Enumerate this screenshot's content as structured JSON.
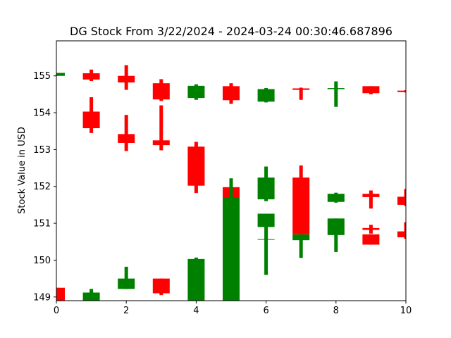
{
  "chart_data": {
    "type": "candlestick",
    "title": "DG Stock From 3/22/2024 - 2024-03-24 00:30:46.687896",
    "xlabel": "",
    "ylabel": "Stock Value in USD",
    "xlim": [
      0,
      10
    ],
    "ylim": [
      148.9,
      155.95
    ],
    "x_ticks": [
      0,
      2,
      4,
      6,
      8,
      10
    ],
    "y_ticks": [
      149,
      150,
      151,
      152,
      153,
      154,
      155
    ],
    "grid": false,
    "colors": {
      "up": "#008000",
      "down": "#ff0000",
      "frame": "#000000"
    },
    "candles": [
      {
        "x": 0,
        "open": 155.0,
        "close": 155.08,
        "high": 155.08,
        "low": 155.0
      },
      {
        "x": 0,
        "open": 149.25,
        "close": 148.9,
        "high": 149.25,
        "low": 148.9
      },
      {
        "x": 1,
        "open": 155.07,
        "close": 154.9,
        "high": 155.17,
        "low": 154.86
      },
      {
        "x": 1,
        "open": 154.03,
        "close": 153.58,
        "high": 154.42,
        "low": 153.45
      },
      {
        "x": 1,
        "open": 148.9,
        "close": 149.12,
        "high": 149.22,
        "low": 148.9
      },
      {
        "x": 2,
        "open": 155.0,
        "close": 154.82,
        "high": 155.29,
        "low": 154.62
      },
      {
        "x": 2,
        "open": 153.42,
        "close": 153.18,
        "high": 153.94,
        "low": 152.96
      },
      {
        "x": 2,
        "open": 149.22,
        "close": 149.5,
        "high": 149.82,
        "low": 149.22
      },
      {
        "x": 3,
        "open": 154.8,
        "close": 154.36,
        "high": 154.91,
        "low": 154.32
      },
      {
        "x": 3,
        "open": 153.25,
        "close": 153.12,
        "high": 154.2,
        "low": 152.98
      },
      {
        "x": 3,
        "open": 149.5,
        "close": 149.1,
        "high": 149.5,
        "low": 149.05
      },
      {
        "x": 4,
        "open": 154.4,
        "close": 154.73,
        "high": 154.77,
        "low": 154.35
      },
      {
        "x": 4,
        "open": 153.08,
        "close": 152.02,
        "high": 153.21,
        "low": 151.82
      },
      {
        "x": 4,
        "open": 148.9,
        "close": 150.03,
        "high": 150.07,
        "low": 148.9
      },
      {
        "x": 5,
        "open": 154.72,
        "close": 154.34,
        "high": 154.8,
        "low": 154.24
      },
      {
        "x": 5,
        "open": 151.98,
        "close": 151.63,
        "high": 151.98,
        "low": 151.35
      },
      {
        "x": 5,
        "open": 148.9,
        "close": 151.7,
        "high": 152.22,
        "low": 148.9
      },
      {
        "x": 6,
        "open": 154.3,
        "close": 154.64,
        "high": 154.67,
        "low": 154.28
      },
      {
        "x": 6,
        "open": 151.65,
        "close": 152.24,
        "high": 152.54,
        "low": 151.6
      },
      {
        "x": 6,
        "open": 150.9,
        "close": 151.26,
        "high": 151.26,
        "low": 149.6
      },
      {
        "x": 6,
        "open": 150.56,
        "close": 150.57,
        "high": 150.57,
        "low": 150.56
      },
      {
        "x": 7,
        "open": 154.66,
        "close": 154.62,
        "high": 154.68,
        "low": 154.35
      },
      {
        "x": 7,
        "open": 152.24,
        "close": 150.7,
        "high": 152.57,
        "low": 150.7
      },
      {
        "x": 7,
        "open": 150.54,
        "close": 150.7,
        "high": 150.7,
        "low": 150.06
      },
      {
        "x": 8,
        "open": 154.64,
        "close": 154.67,
        "high": 154.85,
        "low": 154.16
      },
      {
        "x": 8,
        "open": 151.58,
        "close": 151.8,
        "high": 151.83,
        "low": 151.56
      },
      {
        "x": 8,
        "open": 150.68,
        "close": 151.13,
        "high": 151.13,
        "low": 150.22
      },
      {
        "x": 9,
        "open": 154.72,
        "close": 154.53,
        "high": 154.72,
        "low": 154.5
      },
      {
        "x": 9,
        "open": 151.8,
        "close": 151.71,
        "high": 151.89,
        "low": 151.4
      },
      {
        "x": 9,
        "open": 150.87,
        "close": 150.82,
        "high": 150.96,
        "low": 150.72
      },
      {
        "x": 9,
        "open": 150.7,
        "close": 150.42,
        "high": 150.7,
        "low": 150.42
      },
      {
        "x": 10,
        "open": 154.6,
        "close": 154.56,
        "high": 154.61,
        "low": 154.55
      },
      {
        "x": 10,
        "open": 151.72,
        "close": 151.5,
        "high": 151.93,
        "low": 151.47
      },
      {
        "x": 10,
        "open": 150.78,
        "close": 150.62,
        "high": 151.03,
        "low": 150.58
      }
    ]
  }
}
